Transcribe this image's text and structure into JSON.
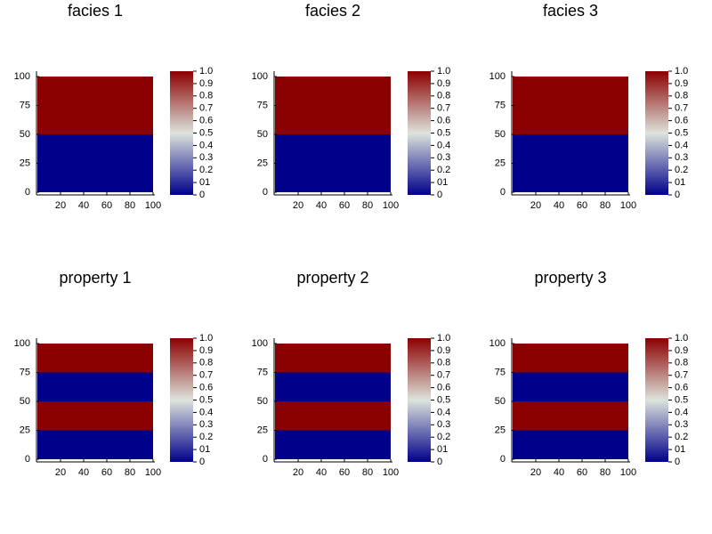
{
  "chart_data": [
    {
      "type": "heatmap",
      "title": "facies 1",
      "xlim": [
        0,
        100
      ],
      "ylim": [
        0,
        100
      ],
      "xticks": [
        20,
        40,
        60,
        80,
        100
      ],
      "yticks": [
        0,
        25,
        50,
        75,
        100
      ],
      "ybins": [
        0,
        50,
        100
      ],
      "values": [
        0,
        1
      ],
      "clim": [
        0,
        1
      ],
      "colormap": [
        "#00008b",
        "#dde3dc",
        "#8b0000"
      ],
      "cticks": [
        {
          "value": 1,
          "label": "1.0"
        },
        0.9,
        0.8,
        0.7,
        0.6,
        0.5,
        0.4,
        0.3,
        0.2,
        {
          "value": 0.1,
          "label": "01"
        },
        0
      ]
    },
    {
      "type": "heatmap",
      "title": "facies 2",
      "xlim": [
        0,
        100
      ],
      "ylim": [
        0,
        100
      ],
      "xticks": [
        20,
        40,
        60,
        80,
        100
      ],
      "yticks": [
        0,
        25,
        50,
        75,
        100
      ],
      "ybins": [
        0,
        50,
        100
      ],
      "values": [
        0,
        1
      ],
      "clim": [
        0,
        1
      ],
      "colormap": [
        "#00008b",
        "#dde3dc",
        "#8b0000"
      ],
      "cticks": [
        {
          "value": 1,
          "label": "1.0"
        },
        0.9,
        0.8,
        0.7,
        0.6,
        0.5,
        0.4,
        0.3,
        0.2,
        {
          "value": 0.1,
          "label": "01"
        },
        0
      ]
    },
    {
      "type": "heatmap",
      "title": "facies 3",
      "xlim": [
        0,
        100
      ],
      "ylim": [
        0,
        100
      ],
      "xticks": [
        20,
        40,
        60,
        80,
        100
      ],
      "yticks": [
        0,
        25,
        50,
        75,
        100
      ],
      "ybins": [
        0,
        50,
        100
      ],
      "values": [
        0,
        1
      ],
      "clim": [
        0,
        1
      ],
      "colormap": [
        "#00008b",
        "#dde3dc",
        "#8b0000"
      ],
      "cticks": [
        {
          "value": 1,
          "label": "1.0"
        },
        0.9,
        0.8,
        0.7,
        0.6,
        0.5,
        0.4,
        0.3,
        0.2,
        {
          "value": 0.1,
          "label": "01"
        },
        0
      ]
    },
    {
      "type": "heatmap",
      "title": "property 1",
      "xlim": [
        0,
        100
      ],
      "ylim": [
        0,
        100
      ],
      "xticks": [
        20,
        40,
        60,
        80,
        100
      ],
      "yticks": [
        0,
        25,
        50,
        75,
        100
      ],
      "ybins": [
        0,
        25,
        50,
        75,
        100
      ],
      "values": [
        0,
        1,
        0,
        1
      ],
      "clim": [
        0,
        1
      ],
      "colormap": [
        "#00008b",
        "#dde3dc",
        "#8b0000"
      ],
      "cticks": [
        {
          "value": 1,
          "label": "1.0"
        },
        0.9,
        0.8,
        0.7,
        0.6,
        0.5,
        0.4,
        0.3,
        0.2,
        {
          "value": 0.1,
          "label": "01"
        },
        0
      ]
    },
    {
      "type": "heatmap",
      "title": "property 2",
      "xlim": [
        0,
        100
      ],
      "ylim": [
        0,
        100
      ],
      "xticks": [
        20,
        40,
        60,
        80,
        100
      ],
      "yticks": [
        0,
        25,
        50,
        75,
        100
      ],
      "ybins": [
        0,
        25,
        50,
        75,
        100
      ],
      "values": [
        0,
        1,
        0,
        1
      ],
      "clim": [
        0,
        1
      ],
      "colormap": [
        "#00008b",
        "#dde3dc",
        "#8b0000"
      ],
      "cticks": [
        {
          "value": 1,
          "label": "1.0"
        },
        0.9,
        0.8,
        0.7,
        0.6,
        0.5,
        0.4,
        0.3,
        0.2,
        {
          "value": 0.1,
          "label": "01"
        },
        0
      ]
    },
    {
      "type": "heatmap",
      "title": "property 3",
      "xlim": [
        0,
        100
      ],
      "ylim": [
        0,
        100
      ],
      "xticks": [
        20,
        40,
        60,
        80,
        100
      ],
      "yticks": [
        0,
        25,
        50,
        75,
        100
      ],
      "ybins": [
        0,
        25,
        50,
        75,
        100
      ],
      "values": [
        0,
        1,
        0,
        1
      ],
      "clim": [
        0,
        1
      ],
      "colormap": [
        "#00008b",
        "#dde3dc",
        "#8b0000"
      ],
      "cticks": [
        {
          "value": 1,
          "label": "1.0"
        },
        0.9,
        0.8,
        0.7,
        0.6,
        0.5,
        0.4,
        0.3,
        0.2,
        {
          "value": 0.1,
          "label": "01"
        },
        0
      ]
    }
  ]
}
